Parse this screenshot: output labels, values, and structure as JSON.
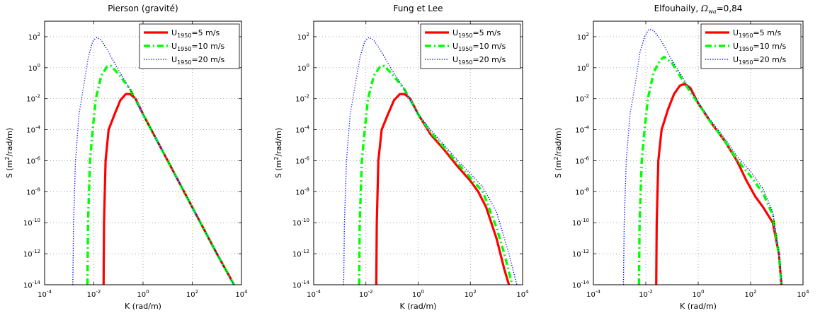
{
  "chart_data": [
    {
      "type": "line",
      "title": "Pierson (gravité)",
      "xlabel": "K (rad/m)",
      "ylabel": "S (m²/rad/m)",
      "xscale": "log",
      "yscale": "log",
      "xlim": [
        0.0001,
        10000
      ],
      "ylim": [
        1e-14,
        1000
      ],
      "grid": true,
      "legend_position": "top-right",
      "series": [
        {
          "name": "U1950=5 m/s",
          "color": "#ff0000",
          "style": "solid",
          "points": [
            [
              0.025,
              1e-14
            ],
            [
              0.026,
              1e-10
            ],
            [
              0.03,
              1e-06
            ],
            [
              0.04,
              0.0001
            ],
            [
              0.07,
              0.001
            ],
            [
              0.12,
              0.008
            ],
            [
              0.2,
              0.02
            ],
            [
              0.3,
              0.02
            ],
            [
              0.5,
              0.01
            ],
            [
              1,
              0.001
            ],
            [
              10,
              1e-06
            ],
            [
              100,
              1e-09
            ],
            [
              1000,
              1e-12
            ],
            [
              5000,
              1e-14
            ]
          ]
        },
        {
          "name": "U1950=10 m/s",
          "color": "#00ff00",
          "style": "dashdot",
          "points": [
            [
              0.0055,
              1e-14
            ],
            [
              0.0058,
              1e-10
            ],
            [
              0.007,
              1e-06
            ],
            [
              0.009,
              0.0001
            ],
            [
              0.012,
              0.01
            ],
            [
              0.02,
              0.3
            ],
            [
              0.035,
              1.2
            ],
            [
              0.05,
              1.3
            ],
            [
              0.1,
              0.4
            ],
            [
              0.3,
              0.04
            ],
            [
              1,
              0.001
            ],
            [
              10,
              1e-06
            ],
            [
              100,
              1e-09
            ],
            [
              1000,
              1e-12
            ],
            [
              5000,
              1e-14
            ]
          ]
        },
        {
          "name": "U1950=20 m/s",
          "color": "#0000ff",
          "style": "dotted",
          "points": [
            [
              0.0014,
              1e-14
            ],
            [
              0.0015,
              1e-10
            ],
            [
              0.0018,
              1e-06
            ],
            [
              0.0025,
              0.001
            ],
            [
              0.004,
              0.1
            ],
            [
              0.006,
              5
            ],
            [
              0.009,
              50
            ],
            [
              0.013,
              90
            ],
            [
              0.02,
              60
            ],
            [
              0.04,
              10
            ],
            [
              0.1,
              0.7
            ],
            [
              0.3,
              0.04
            ],
            [
              1,
              0.001
            ],
            [
              10,
              1e-06
            ],
            [
              100,
              1e-09
            ],
            [
              1000,
              1e-12
            ],
            [
              5000,
              1e-14
            ]
          ]
        }
      ]
    },
    {
      "type": "line",
      "title": "Fung et Lee",
      "xlabel": "K (rad/m)",
      "ylabel": "S (m²/rad/m)",
      "xscale": "log",
      "yscale": "log",
      "xlim": [
        0.0001,
        10000
      ],
      "ylim": [
        1e-14,
        1000
      ],
      "grid": true,
      "legend_position": "top-right",
      "series": [
        {
          "name": "U1950=5 m/s",
          "color": "#ff0000",
          "style": "solid",
          "points": [
            [
              0.025,
              1e-14
            ],
            [
              0.026,
              1e-10
            ],
            [
              0.03,
              1e-06
            ],
            [
              0.04,
              0.0001
            ],
            [
              0.07,
              0.001
            ],
            [
              0.12,
              0.008
            ],
            [
              0.2,
              0.02
            ],
            [
              0.3,
              0.02
            ],
            [
              0.5,
              0.01
            ],
            [
              1,
              0.001
            ],
            [
              3,
              5e-05
            ],
            [
              10,
              5e-06
            ],
            [
              30,
              5e-07
            ],
            [
              100,
              5e-08
            ],
            [
              200,
              1e-08
            ],
            [
              400,
              1e-09
            ],
            [
              1000,
              1e-11
            ],
            [
              2000,
              1e-13
            ],
            [
              3000,
              1e-14
            ]
          ]
        },
        {
          "name": "U1950=10 m/s",
          "color": "#00ff00",
          "style": "dashdot",
          "points": [
            [
              0.0055,
              1e-14
            ],
            [
              0.0058,
              1e-10
            ],
            [
              0.007,
              1e-06
            ],
            [
              0.009,
              0.0001
            ],
            [
              0.012,
              0.01
            ],
            [
              0.02,
              0.3
            ],
            [
              0.035,
              1.2
            ],
            [
              0.05,
              1.3
            ],
            [
              0.1,
              0.4
            ],
            [
              0.3,
              0.04
            ],
            [
              1,
              0.001
            ],
            [
              3,
              7e-05
            ],
            [
              10,
              7e-06
            ],
            [
              30,
              8e-07
            ],
            [
              100,
              8e-08
            ],
            [
              300,
              1e-08
            ],
            [
              1000,
              5e-11
            ],
            [
              2000,
              1e-12
            ],
            [
              4000,
              1e-14
            ]
          ]
        },
        {
          "name": "U1950=20 m/s",
          "color": "#0000ff",
          "style": "dotted",
          "points": [
            [
              0.0014,
              1e-14
            ],
            [
              0.0015,
              1e-10
            ],
            [
              0.0018,
              1e-06
            ],
            [
              0.0025,
              0.001
            ],
            [
              0.004,
              0.1
            ],
            [
              0.006,
              5
            ],
            [
              0.009,
              50
            ],
            [
              0.013,
              90
            ],
            [
              0.02,
              60
            ],
            [
              0.04,
              10
            ],
            [
              0.1,
              0.7
            ],
            [
              0.3,
              0.04
            ],
            [
              1,
              0.001
            ],
            [
              3,
              0.0001
            ],
            [
              10,
              1e-05
            ],
            [
              30,
              1.2e-06
            ],
            [
              100,
              1.5e-07
            ],
            [
              300,
              2e-08
            ],
            [
              1000,
              5e-10
            ],
            [
              3000,
              1e-12
            ],
            [
              6000,
              1e-14
            ]
          ]
        }
      ]
    },
    {
      "type": "line",
      "title": "Elfouhaily, Ωwa=0,84",
      "title_main": "Elfouhaily, ",
      "title_symbol": "Ω",
      "title_sub": "wa",
      "title_tail": "=0,84",
      "xlabel": "K (rad/m)",
      "ylabel": "S (m²/rad/m)",
      "xscale": "log",
      "yscale": "log",
      "xlim": [
        0.0001,
        10000
      ],
      "ylim": [
        1e-14,
        1000
      ],
      "grid": true,
      "legend_position": "top-right",
      "series": [
        {
          "name": "U1950=5 m/s",
          "color": "#ff0000",
          "style": "solid",
          "points": [
            [
              0.025,
              1e-14
            ],
            [
              0.026,
              1e-10
            ],
            [
              0.03,
              1e-06
            ],
            [
              0.04,
              0.0001
            ],
            [
              0.07,
              0.002
            ],
            [
              0.12,
              0.02
            ],
            [
              0.2,
              0.07
            ],
            [
              0.3,
              0.09
            ],
            [
              0.5,
              0.05
            ],
            [
              1,
              0.005
            ],
            [
              3,
              0.0003
            ],
            [
              10,
              2e-05
            ],
            [
              30,
              1e-06
            ],
            [
              70,
              5e-08
            ],
            [
              150,
              5e-09
            ],
            [
              300,
              1e-09
            ],
            [
              700,
              1e-10
            ],
            [
              1200,
              1e-12
            ],
            [
              1500,
              1e-14
            ]
          ]
        },
        {
          "name": "U1950=10 m/s",
          "color": "#00ff00",
          "style": "dashdot",
          "points": [
            [
              0.0055,
              1e-14
            ],
            [
              0.0058,
              1e-10
            ],
            [
              0.007,
              1e-06
            ],
            [
              0.009,
              0.0001
            ],
            [
              0.012,
              0.01
            ],
            [
              0.02,
              0.5
            ],
            [
              0.035,
              3
            ],
            [
              0.05,
              5
            ],
            [
              0.1,
              2
            ],
            [
              0.3,
              0.1
            ],
            [
              1,
              0.005
            ],
            [
              3,
              0.0003
            ],
            [
              10,
              2e-05
            ],
            [
              30,
              1.2e-06
            ],
            [
              100,
              1e-07
            ],
            [
              300,
              8e-09
            ],
            [
              700,
              3e-10
            ],
            [
              1200,
              1e-12
            ],
            [
              1500,
              1e-14
            ]
          ]
        },
        {
          "name": "U1950=20 m/s",
          "color": "#0000ff",
          "style": "dotted",
          "points": [
            [
              0.0014,
              1e-14
            ],
            [
              0.0015,
              1e-10
            ],
            [
              0.0018,
              1e-06
            ],
            [
              0.0025,
              0.001
            ],
            [
              0.004,
              0.1
            ],
            [
              0.006,
              10
            ],
            [
              0.009,
              100
            ],
            [
              0.013,
              300
            ],
            [
              0.02,
              250
            ],
            [
              0.04,
              50
            ],
            [
              0.1,
              3
            ],
            [
              0.3,
              0.15
            ],
            [
              1,
              0.006
            ],
            [
              3,
              0.0004
            ],
            [
              10,
              3e-05
            ],
            [
              30,
              2e-06
            ],
            [
              100,
              2e-07
            ],
            [
              300,
              1.5e-08
            ],
            [
              700,
              5e-10
            ],
            [
              1200,
              1e-12
            ],
            [
              1600,
              1e-14
            ]
          ]
        }
      ]
    }
  ]
}
